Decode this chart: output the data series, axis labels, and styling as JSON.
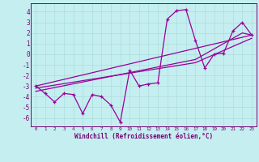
{
  "title": "",
  "xlabel": "Windchill (Refroidissement éolien,°C)",
  "bg_color": "#c5eef0",
  "line_color": "#990099",
  "grid_color": "#aadddd",
  "axis_color": "#880088",
  "text_color": "#770077",
  "xlim": [
    -0.5,
    23.5
  ],
  "ylim": [
    -6.8,
    4.8
  ],
  "xticks": [
    0,
    1,
    2,
    3,
    4,
    5,
    6,
    7,
    8,
    9,
    10,
    11,
    12,
    13,
    14,
    15,
    16,
    17,
    18,
    19,
    20,
    21,
    22,
    23
  ],
  "yticks": [
    -6,
    -5,
    -4,
    -3,
    -2,
    -1,
    0,
    1,
    2,
    3,
    4
  ],
  "series": [
    {
      "points": [
        [
          0,
          -3.0
        ],
        [
          1,
          -3.7
        ],
        [
          2,
          -4.5
        ],
        [
          3,
          -3.7
        ],
        [
          4,
          -3.8
        ],
        [
          5,
          -5.6
        ],
        [
          6,
          -3.8
        ],
        [
          7,
          -4.0
        ],
        [
          8,
          -4.8
        ],
        [
          9,
          -6.4
        ],
        [
          10,
          -1.5
        ],
        [
          11,
          -3.0
        ],
        [
          12,
          -2.8
        ],
        [
          13,
          -2.7
        ],
        [
          14,
          3.3
        ],
        [
          15,
          4.1
        ],
        [
          16,
          4.2
        ],
        [
          17,
          1.3
        ],
        [
          18,
          -1.3
        ],
        [
          19,
          0.0
        ],
        [
          20,
          0.1
        ],
        [
          21,
          2.2
        ],
        [
          22,
          3.0
        ],
        [
          23,
          1.8
        ]
      ],
      "marker": true
    },
    {
      "points": [
        [
          0,
          -3.0
        ],
        [
          23,
          1.8
        ]
      ],
      "marker": false
    },
    {
      "points": [
        [
          0,
          -3.2
        ],
        [
          17,
          -0.8
        ],
        [
          23,
          1.5
        ]
      ],
      "marker": false
    },
    {
      "points": [
        [
          0,
          -3.5
        ],
        [
          17,
          -0.5
        ],
        [
          22,
          2.0
        ],
        [
          23,
          1.8
        ]
      ],
      "marker": false
    }
  ]
}
